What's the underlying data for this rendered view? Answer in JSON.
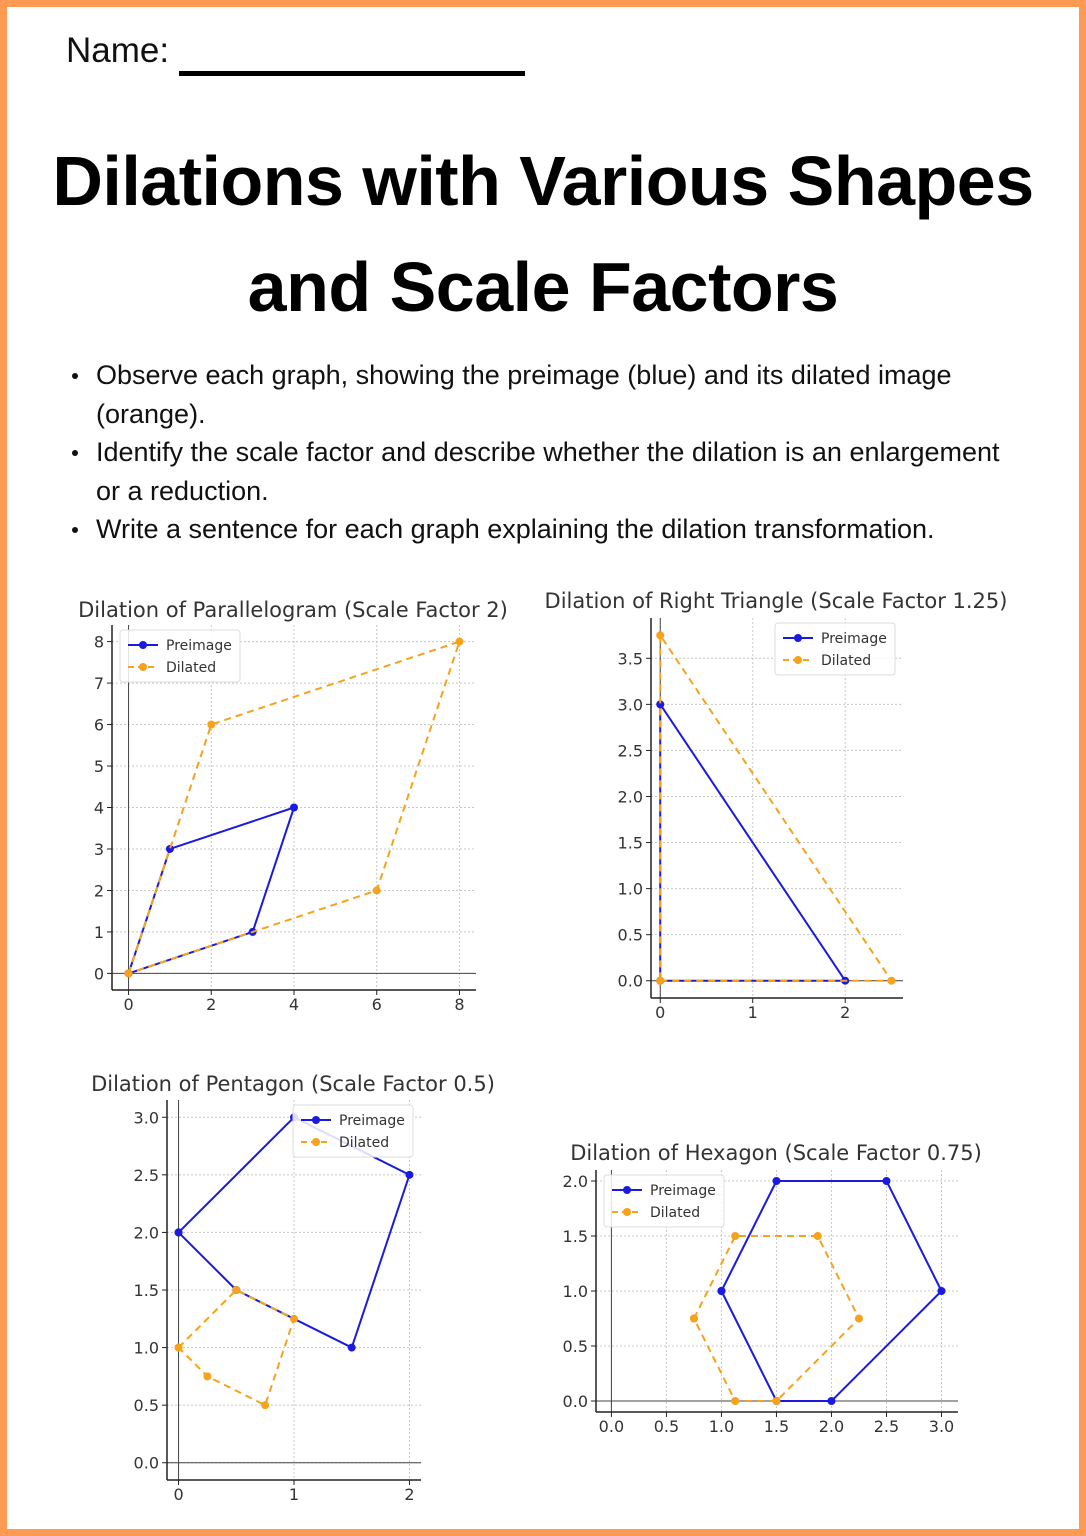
{
  "header": {
    "name_label": "Name:",
    "title_line1": "Dilations with Various Shapes",
    "title_line2": "and Scale Factors"
  },
  "instructions": [
    "Observe each graph, showing the preimage (blue) and its dilated image (orange).",
    "Identify the scale factor and describe whether the dilation is an enlargement or a reduction.",
    "Write a sentence for each graph explaining the dilation transformation."
  ],
  "colors": {
    "border": "#ff9a52",
    "preimage": "#1a1ae0",
    "dilated": "#f7a21b"
  },
  "chart_data": [
    {
      "type": "line",
      "title": "Dilation of Parallelogram (Scale Factor 2)",
      "xlim": [
        -0.4,
        8.4
      ],
      "ylim": [
        -0.4,
        8.4
      ],
      "xticks": [
        "0",
        "2",
        "4",
        "6",
        "8"
      ],
      "xtick_values": [
        0,
        2,
        4,
        6,
        8
      ],
      "yticks": [
        "0",
        "1",
        "2",
        "3",
        "4",
        "5",
        "6",
        "7",
        "8"
      ],
      "ytick_values": [
        0,
        1,
        2,
        3,
        4,
        5,
        6,
        7,
        8
      ],
      "grid": true,
      "legend": "upper-left",
      "series": [
        {
          "name": "Preimage",
          "style": "solid",
          "points": [
            [
              0,
              0
            ],
            [
              1,
              3
            ],
            [
              4,
              4
            ],
            [
              3,
              1
            ],
            [
              0,
              0
            ]
          ]
        },
        {
          "name": "Dilated",
          "style": "dashed",
          "points": [
            [
              0,
              0
            ],
            [
              2,
              6
            ],
            [
              8,
              8
            ],
            [
              6,
              2
            ],
            [
              0,
              0
            ]
          ]
        }
      ]
    },
    {
      "type": "line",
      "title": "Dilation of Right Triangle (Scale Factor 1.25)",
      "xlim": [
        -0.1,
        2.625
      ],
      "ylim": [
        -0.1875,
        3.9375
      ],
      "xticks": [
        "0",
        "1",
        "2"
      ],
      "xtick_values": [
        0,
        1,
        2
      ],
      "yticks": [
        "0.0",
        "0.5",
        "1.0",
        "1.5",
        "2.0",
        "2.5",
        "3.0",
        "3.5"
      ],
      "ytick_values": [
        0,
        0.5,
        1,
        1.5,
        2,
        2.5,
        3,
        3.5
      ],
      "grid": true,
      "legend": "upper-right",
      "series": [
        {
          "name": "Preimage",
          "style": "solid",
          "points": [
            [
              0,
              0
            ],
            [
              2,
              0
            ],
            [
              0,
              3
            ],
            [
              0,
              0
            ]
          ]
        },
        {
          "name": "Dilated",
          "style": "dashed",
          "points": [
            [
              0,
              0
            ],
            [
              2.5,
              0
            ],
            [
              0,
              3.75
            ],
            [
              0,
              0
            ]
          ]
        }
      ]
    },
    {
      "type": "line",
      "title": "Dilation of Pentagon (Scale Factor 0.5)",
      "xlim": [
        -0.1,
        2.1
      ],
      "ylim": [
        -0.15,
        3.15
      ],
      "xticks": [
        "0",
        "1",
        "2"
      ],
      "xtick_values": [
        0,
        1,
        2
      ],
      "yticks": [
        "0.0",
        "0.5",
        "1.0",
        "1.5",
        "2.0",
        "2.5",
        "3.0"
      ],
      "ytick_values": [
        0,
        0.5,
        1,
        1.5,
        2,
        2.5,
        3
      ],
      "grid": true,
      "legend": "upper-right",
      "series": [
        {
          "name": "Preimage",
          "style": "solid",
          "points": [
            [
              0,
              2
            ],
            [
              1,
              3
            ],
            [
              2,
              2.5
            ],
            [
              1.5,
              1
            ],
            [
              0.5,
              1.5
            ],
            [
              0,
              2
            ]
          ]
        },
        {
          "name": "Dilated",
          "style": "dashed",
          "points": [
            [
              0,
              1
            ],
            [
              0.5,
              1.5
            ],
            [
              1,
              1.25
            ],
            [
              0.75,
              0.5
            ],
            [
              0.25,
              0.75
            ],
            [
              0,
              1
            ]
          ]
        }
      ]
    },
    {
      "type": "line",
      "title": "Dilation of Hexagon (Scale Factor 0.75)",
      "xlim": [
        -0.14,
        3.15
      ],
      "ylim": [
        -0.1,
        2.1
      ],
      "xticks": [
        "0.0",
        "0.5",
        "1.0",
        "1.5",
        "2.0",
        "2.5",
        "3.0"
      ],
      "xtick_values": [
        0,
        0.5,
        1,
        1.5,
        2,
        2.5,
        3
      ],
      "yticks": [
        "0.0",
        "0.5",
        "1.0",
        "1.5",
        "2.0"
      ],
      "ytick_values": [
        0,
        0.5,
        1,
        1.5,
        2
      ],
      "grid": true,
      "legend": "upper-left",
      "series": [
        {
          "name": "Preimage",
          "style": "solid",
          "points": [
            [
              1,
              1
            ],
            [
              1.5,
              2
            ],
            [
              2.5,
              2
            ],
            [
              3,
              1
            ],
            [
              2,
              0
            ],
            [
              1.5,
              0
            ],
            [
              1,
              1
            ]
          ]
        },
        {
          "name": "Dilated",
          "style": "dashed",
          "points": [
            [
              0.75,
              0.75
            ],
            [
              1.125,
              1.5
            ],
            [
              1.875,
              1.5
            ],
            [
              2.25,
              0.75
            ],
            [
              1.5,
              0
            ],
            [
              1.125,
              0
            ],
            [
              0.75,
              0.75
            ]
          ]
        }
      ]
    }
  ]
}
